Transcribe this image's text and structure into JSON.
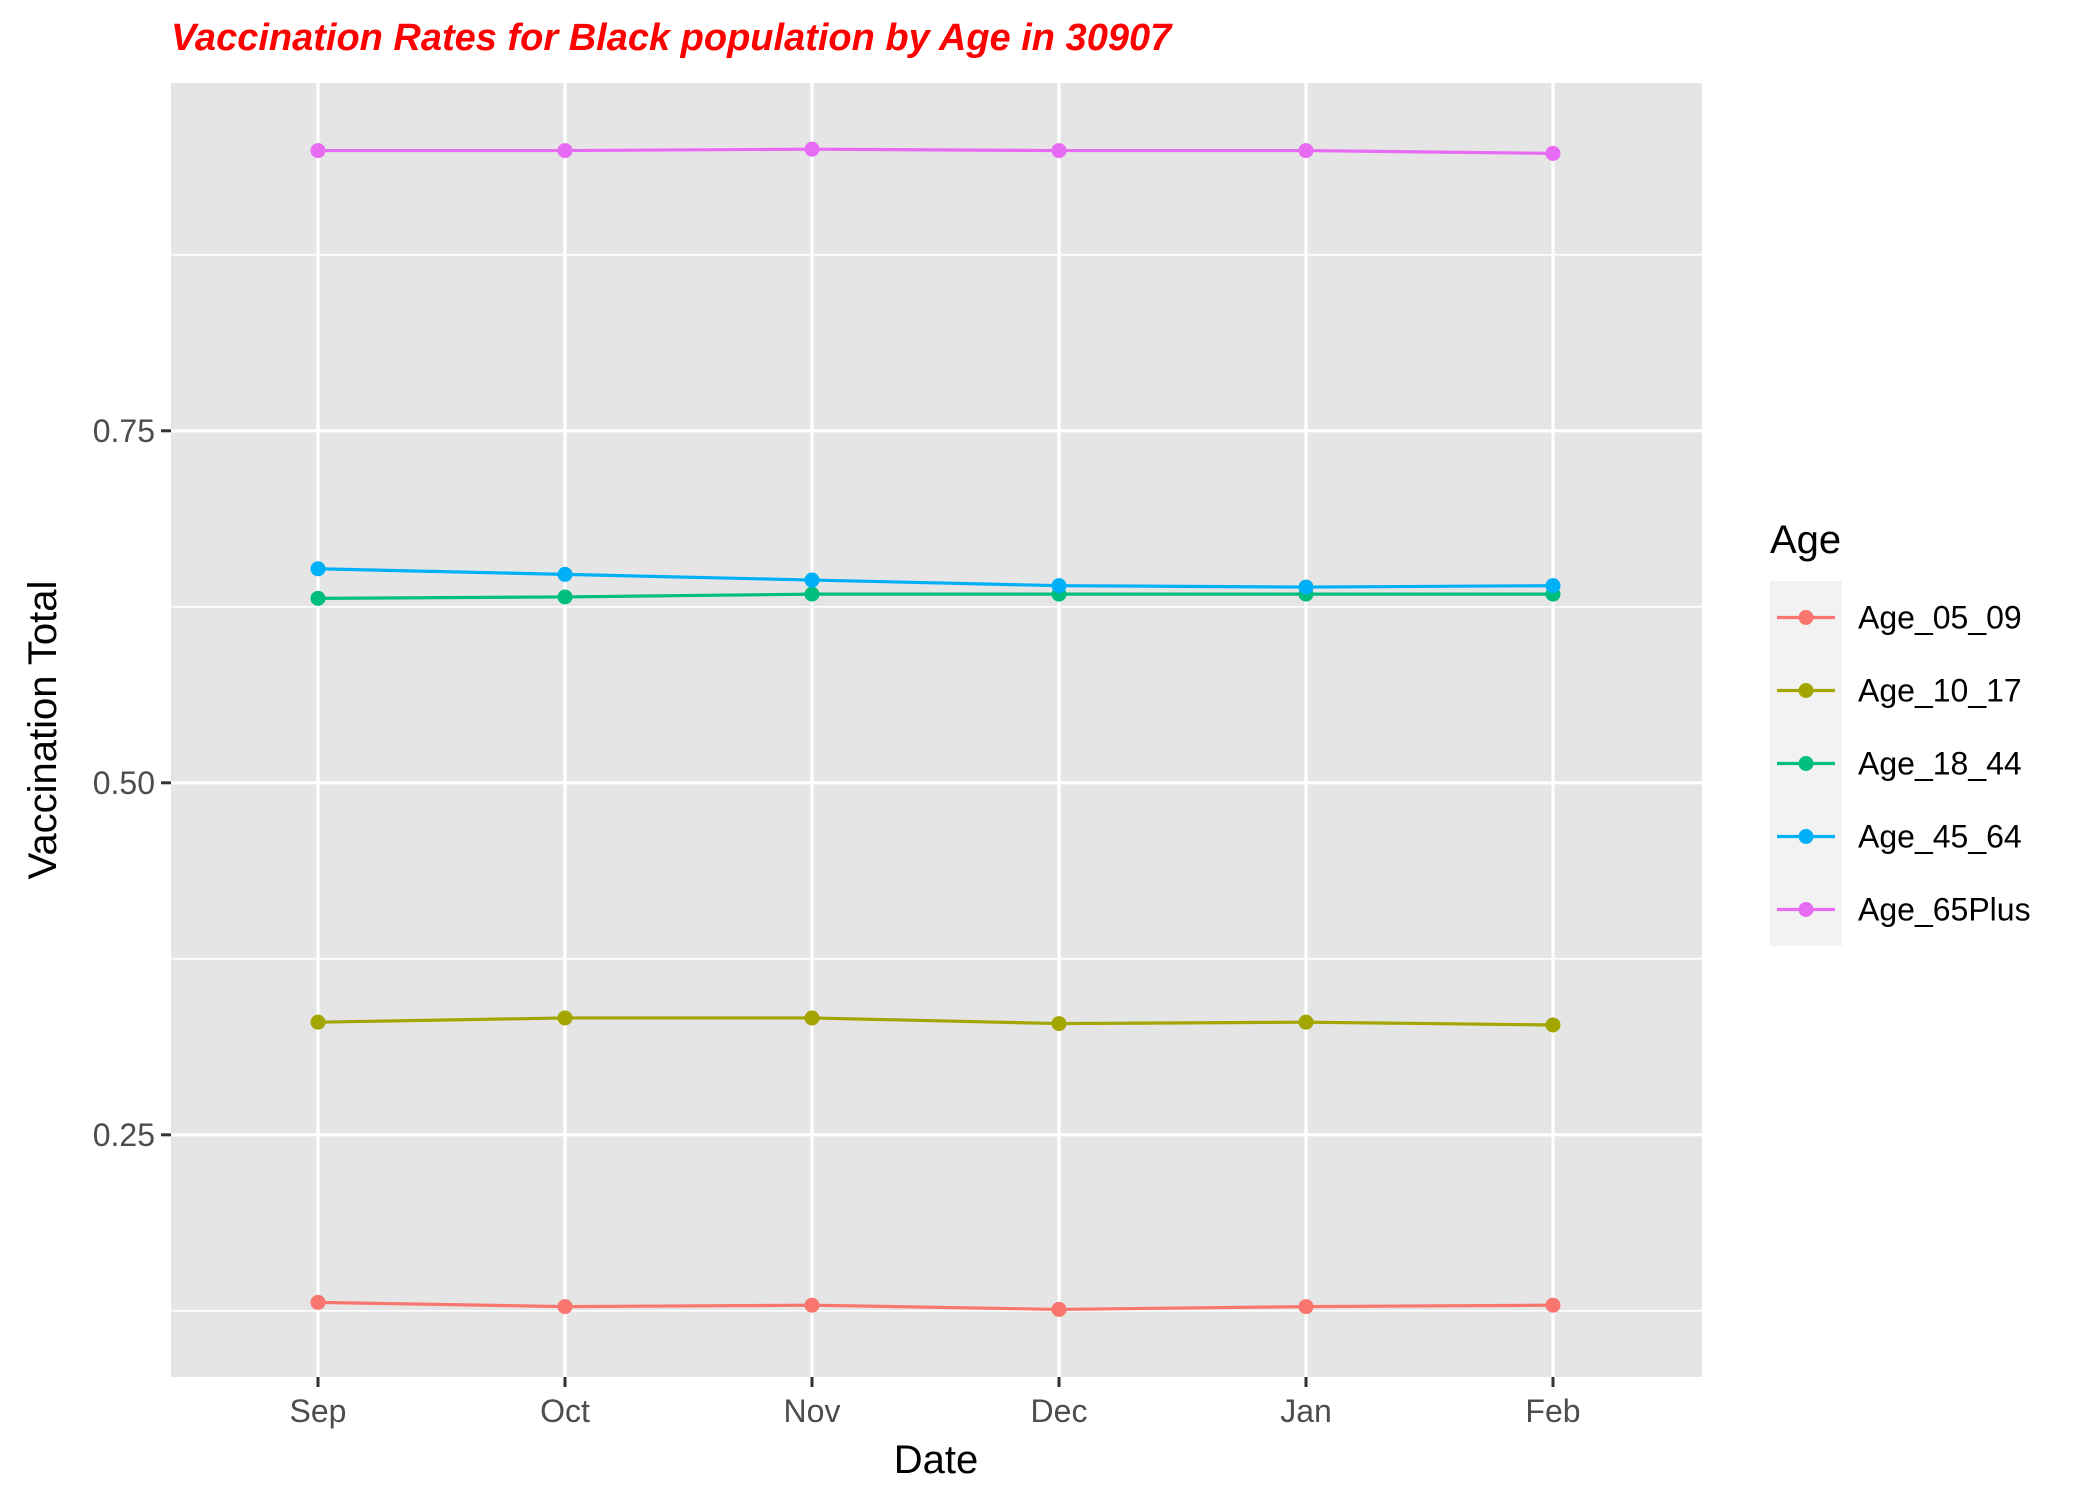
{
  "chart_data": {
    "type": "line",
    "title": "Vaccination Rates for Black population by Age in 30907",
    "xlabel": "Date",
    "ylabel": "Vaccination Total",
    "categories": [
      "Sep",
      "Oct",
      "Nov",
      "Dec",
      "Jan",
      "Feb"
    ],
    "ylim": [
      0.078,
      0.997
    ],
    "y_ticks": [
      0.25,
      0.5,
      0.75
    ],
    "y_tick_labels": [
      "0.25",
      "0.50",
      "0.75"
    ],
    "grid": true,
    "legend_title": "Age",
    "legend_position": "right",
    "series": [
      {
        "name": "Age_05_09",
        "color": "#F8766D",
        "values": [
          0.131,
          0.128,
          0.129,
          0.126,
          0.128,
          0.129
        ]
      },
      {
        "name": "Age_10_17",
        "color": "#A3A500",
        "values": [
          0.33,
          0.333,
          0.333,
          0.329,
          0.33,
          0.328
        ]
      },
      {
        "name": "Age_18_44",
        "color": "#00BF7D",
        "values": [
          0.631,
          0.632,
          0.634,
          0.634,
          0.634,
          0.634
        ]
      },
      {
        "name": "Age_45_64",
        "color": "#00B0F6",
        "values": [
          0.652,
          0.648,
          0.644,
          0.64,
          0.639,
          0.64
        ]
      },
      {
        "name": "Age_65Plus",
        "color": "#E76BF3",
        "values": [
          0.949,
          0.949,
          0.95,
          0.949,
          0.949,
          0.947
        ]
      }
    ]
  },
  "colors": {
    "title": "#FF0000",
    "panel_background": "#E5E5E5",
    "grid": "#FFFFFF",
    "tick_text": "#4D4D4D",
    "legend_key_background": "#F2F2F2"
  }
}
